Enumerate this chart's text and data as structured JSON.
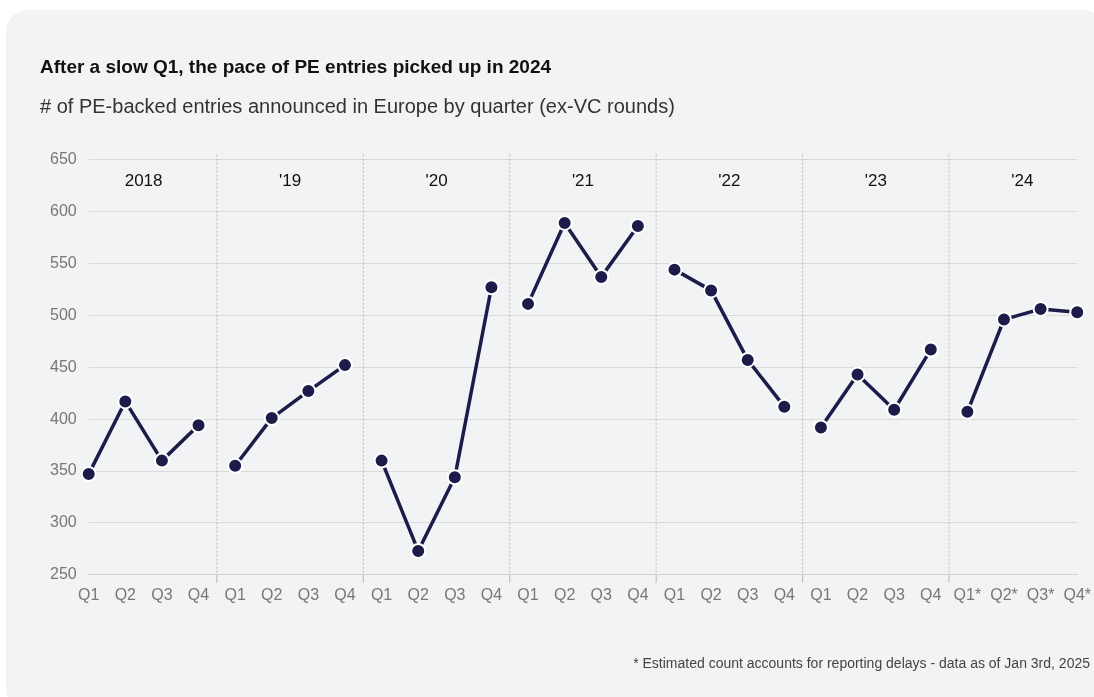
{
  "chart_data": {
    "type": "line",
    "title": "After a slow Q1, the pace of PE entries picked up in 2024",
    "subtitle": "# of PE-backed entries announced in Europe by quarter (ex-VC rounds)",
    "categories": [
      "Q1",
      "Q2",
      "Q3",
      "Q4",
      "Q1",
      "Q2",
      "Q3",
      "Q4",
      "Q1",
      "Q2",
      "Q3",
      "Q4",
      "Q1",
      "Q2",
      "Q3",
      "Q4",
      "Q1",
      "Q2",
      "Q3",
      "Q4",
      "Q1",
      "Q2",
      "Q3",
      "Q4",
      "Q1*",
      "Q2*",
      "Q3*",
      "Q4*"
    ],
    "series": [
      {
        "color": "#1c1b4a",
        "values": [
          347,
          417,
          360,
          394,
          null,
          null,
          null,
          null,
          null,
          null,
          null,
          null,
          null,
          null,
          null,
          null,
          null,
          null,
          null,
          null,
          null,
          null,
          null,
          null,
          null,
          null,
          null,
          null
        ]
      },
      {
        "color": "#1c1b4a",
        "values": [
          null,
          null,
          null,
          null,
          355,
          401,
          427,
          452,
          null,
          null,
          null,
          null,
          null,
          null,
          null,
          null,
          null,
          null,
          null,
          null,
          null,
          null,
          null,
          null,
          null,
          null,
          null,
          null
        ]
      },
      {
        "color": "#1c1b4a",
        "values": [
          null,
          null,
          null,
          null,
          null,
          null,
          null,
          null,
          360,
          273,
          344,
          527,
          null,
          null,
          null,
          null,
          null,
          null,
          null,
          null,
          null,
          null,
          null,
          null,
          null,
          null,
          null,
          null
        ]
      },
      {
        "color": "#1c1b4a",
        "values": [
          null,
          null,
          null,
          null,
          null,
          null,
          null,
          null,
          null,
          null,
          null,
          null,
          511,
          589,
          537,
          586,
          null,
          null,
          null,
          null,
          null,
          null,
          null,
          null,
          null,
          null,
          null,
          null
        ]
      },
      {
        "color": "#1c1b4a",
        "values": [
          null,
          null,
          null,
          null,
          null,
          null,
          null,
          null,
          null,
          null,
          null,
          null,
          null,
          null,
          null,
          null,
          544,
          524,
          457,
          412,
          null,
          null,
          null,
          null,
          null,
          null,
          null,
          null
        ]
      },
      {
        "color": "#1c1b4a",
        "values": [
          null,
          null,
          null,
          null,
          null,
          null,
          null,
          null,
          null,
          null,
          null,
          null,
          null,
          null,
          null,
          null,
          null,
          null,
          null,
          null,
          392,
          443,
          409,
          467,
          null,
          null,
          null,
          null
        ]
      },
      {
        "color": "#1c1b4a",
        "values": [
          null,
          null,
          null,
          null,
          null,
          null,
          null,
          null,
          null,
          null,
          null,
          null,
          null,
          null,
          null,
          null,
          null,
          null,
          null,
          null,
          null,
          null,
          null,
          null,
          407,
          496,
          506,
          503
        ]
      }
    ],
    "ylim": [
      250,
      650
    ],
    "yticks": [
      250,
      300,
      350,
      400,
      450,
      500,
      550,
      600,
      650
    ],
    "grid": "y",
    "legend": false,
    "marker": "circle",
    "line_style": "solid",
    "annotations": [
      "2018",
      "'19",
      "'20",
      "'21",
      "'22",
      "'23",
      "'24",
      "* Estimated count accounts for reporting delays - data as of Jan 3rd, 2025"
    ]
  }
}
